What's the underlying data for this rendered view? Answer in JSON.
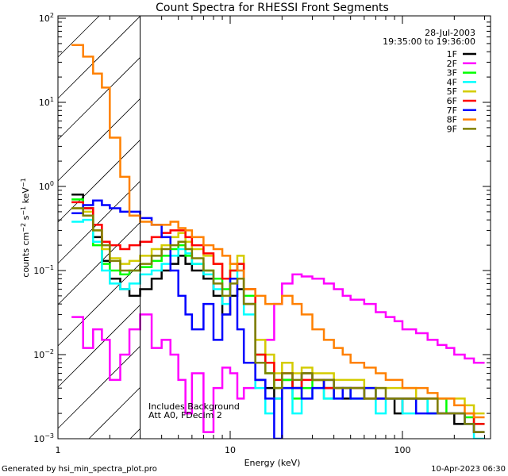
{
  "chart_data": {
    "type": "line",
    "title": "Count Spectra for RHESSI Front Segments",
    "xlabel": "Energy (keV)",
    "ylabel": "counts cm-2 s-1 keV-1",
    "ylabel_parts": {
      "base": "counts cm",
      "e1": "−2",
      "s": " s",
      "e2": "−1",
      "k": " keV",
      "e3": "−1"
    },
    "xscale": "log",
    "yscale": "log",
    "xlim": [
      1,
      320
    ],
    "ylim": [
      0.001,
      100
    ],
    "x_ticks": [
      {
        "value": 1,
        "label": "1"
      },
      {
        "value": 10,
        "label": "10"
      },
      {
        "value": 100,
        "label": "100"
      }
    ],
    "y_ticks": [
      {
        "value": 100,
        "exp": "2"
      },
      {
        "value": 10,
        "exp": "1"
      },
      {
        "value": 1,
        "exp": "0"
      },
      {
        "value": 0.1,
        "exp": "−1"
      },
      {
        "value": 0.01,
        "exp": "−2"
      },
      {
        "value": 0.001,
        "exp": "−3"
      }
    ],
    "y_tick_base": "10",
    "excluded_region_below_keV": 3,
    "date": "28-Jul-2003",
    "time_range": "19:35:00 to 19:36:00",
    "annotations": [
      "Includes Background",
      "Att A0, FDecim 2"
    ],
    "legend_position": "top-right",
    "energy_edges": [
      1.2,
      1.4,
      1.6,
      1.8,
      2.0,
      2.3,
      2.6,
      3.0,
      3.5,
      4,
      4.5,
      5,
      5.5,
      6,
      7,
      8,
      9,
      10,
      11,
      12,
      14,
      16,
      18,
      20,
      23,
      26,
      30,
      35,
      40,
      45,
      50,
      60,
      70,
      80,
      90,
      100,
      120,
      140,
      160,
      180,
      200,
      230,
      260,
      300
    ],
    "series": [
      {
        "name": "1F",
        "color": "#000000",
        "values": [
          0.8,
          0.55,
          0.25,
          0.13,
          0.08,
          0.06,
          0.05,
          0.06,
          0.08,
          0.1,
          0.12,
          0.15,
          0.12,
          0.1,
          0.08,
          0.05,
          0.03,
          0.05,
          0.06,
          0.04,
          0.005,
          0.004,
          0.003,
          0.005,
          0.004,
          0.006,
          0.005,
          0.004,
          0.004,
          0.003,
          0.004,
          0.003,
          0.003,
          0.003,
          0.002,
          0.003,
          0.003,
          0.002,
          0.002,
          0.002,
          0.0015,
          0.0015,
          0.0012
        ]
      },
      {
        "name": "2F",
        "color": "#ff00ff",
        "values": [
          0.028,
          0.012,
          0.02,
          0.015,
          0.005,
          0.01,
          0.02,
          0.03,
          0.012,
          0.015,
          0.01,
          0.005,
          0.002,
          0.006,
          0.0012,
          0.004,
          0.007,
          0.006,
          0.003,
          0.004,
          0.008,
          0.015,
          0.04,
          0.07,
          0.09,
          0.085,
          0.08,
          0.07,
          0.06,
          0.05,
          0.045,
          0.04,
          0.032,
          0.028,
          0.025,
          0.02,
          0.018,
          0.015,
          0.013,
          0.012,
          0.01,
          0.009,
          0.008
        ]
      },
      {
        "name": "3F",
        "color": "#00ff00",
        "values": [
          0.7,
          0.45,
          0.2,
          0.12,
          0.1,
          0.09,
          0.1,
          0.11,
          0.13,
          0.15,
          0.18,
          0.2,
          0.15,
          0.12,
          0.1,
          0.08,
          0.06,
          0.1,
          0.12,
          0.05,
          0.01,
          0.006,
          0.004,
          0.005,
          0.003,
          0.004,
          0.005,
          0.003,
          0.004,
          0.004,
          0.003,
          0.004,
          0.003,
          0.003,
          0.003,
          0.003,
          0.003,
          0.002,
          0.003,
          0.002,
          0.002,
          0.0018,
          0.0015
        ]
      },
      {
        "name": "4F",
        "color": "#00ffff",
        "values": [
          0.38,
          0.4,
          0.22,
          0.1,
          0.07,
          0.06,
          0.07,
          0.09,
          0.1,
          0.12,
          0.15,
          0.18,
          0.16,
          0.12,
          0.09,
          0.06,
          0.04,
          0.08,
          0.1,
          0.03,
          0.004,
          0.002,
          0.003,
          0.004,
          0.002,
          0.003,
          0.004,
          0.003,
          0.003,
          0.004,
          0.003,
          0.003,
          0.002,
          0.003,
          0.003,
          0.002,
          0.003,
          0.002,
          0.002,
          0.002,
          0.002,
          0.0015,
          0.001
        ]
      },
      {
        "name": "5F",
        "color": "#d4cc00",
        "values": [
          0.55,
          0.5,
          0.3,
          0.18,
          0.14,
          0.12,
          0.13,
          0.15,
          0.18,
          0.2,
          0.25,
          0.28,
          0.22,
          0.18,
          0.15,
          0.12,
          0.08,
          0.12,
          0.15,
          0.06,
          0.015,
          0.01,
          0.006,
          0.008,
          0.006,
          0.007,
          0.006,
          0.006,
          0.005,
          0.005,
          0.005,
          0.004,
          0.004,
          0.004,
          0.004,
          0.004,
          0.003,
          0.003,
          0.003,
          0.003,
          0.003,
          0.0025,
          0.002
        ]
      },
      {
        "name": "6F",
        "color": "#ff0000",
        "values": [
          0.65,
          0.55,
          0.35,
          0.22,
          0.2,
          0.18,
          0.2,
          0.22,
          0.25,
          0.28,
          0.3,
          0.3,
          0.25,
          0.2,
          0.16,
          0.12,
          0.08,
          0.1,
          0.12,
          0.06,
          0.01,
          0.008,
          0.005,
          0.006,
          0.004,
          0.005,
          0.005,
          0.004,
          0.004,
          0.004,
          0.004,
          0.003,
          0.003,
          0.003,
          0.003,
          0.003,
          0.003,
          0.003,
          0.002,
          0.002,
          0.002,
          0.002,
          0.0015
        ]
      },
      {
        "name": "7F",
        "color": "#0000ff",
        "values": [
          0.48,
          0.6,
          0.68,
          0.6,
          0.55,
          0.5,
          0.5,
          0.42,
          0.35,
          0.25,
          0.1,
          0.05,
          0.03,
          0.02,
          0.04,
          0.015,
          0.03,
          0.08,
          0.02,
          0.008,
          0.005,
          0.003,
          0.001,
          0.004,
          0.004,
          0.003,
          0.004,
          0.005,
          0.003,
          0.004,
          0.003,
          0.004,
          0.003,
          0.003,
          0.003,
          0.003,
          0.002,
          0.002,
          0.002,
          0.002,
          0.002,
          0.0015,
          0.0012
        ]
      },
      {
        "name": "8F",
        "color": "#ff8000",
        "values": [
          48,
          35,
          22,
          15,
          3.8,
          1.3,
          0.45,
          0.38,
          0.35,
          0.35,
          0.38,
          0.32,
          0.3,
          0.25,
          0.2,
          0.18,
          0.15,
          0.12,
          0.1,
          0.06,
          0.05,
          0.04,
          0.04,
          0.05,
          0.04,
          0.03,
          0.02,
          0.015,
          0.012,
          0.01,
          0.008,
          0.007,
          0.006,
          0.005,
          0.005,
          0.004,
          0.004,
          0.0035,
          0.003,
          0.003,
          0.0025,
          0.002,
          0.0018
        ]
      },
      {
        "name": "9F",
        "color": "#808000",
        "values": [
          0.55,
          0.45,
          0.3,
          0.2,
          0.13,
          0.1,
          0.1,
          0.12,
          0.15,
          0.18,
          0.2,
          0.22,
          0.18,
          0.14,
          0.1,
          0.07,
          0.05,
          0.07,
          0.08,
          0.04,
          0.008,
          0.006,
          0.004,
          0.006,
          0.005,
          0.006,
          0.005,
          0.005,
          0.004,
          0.004,
          0.004,
          0.003,
          0.004,
          0.003,
          0.003,
          0.003,
          0.003,
          0.003,
          0.002,
          0.002,
          0.002,
          0.0015,
          0.0012
        ]
      }
    ]
  },
  "footer": {
    "generated_by": "Generated by hsi_min_spectra_plot.pro",
    "timestamp": "10-Apr-2023 06:30"
  }
}
